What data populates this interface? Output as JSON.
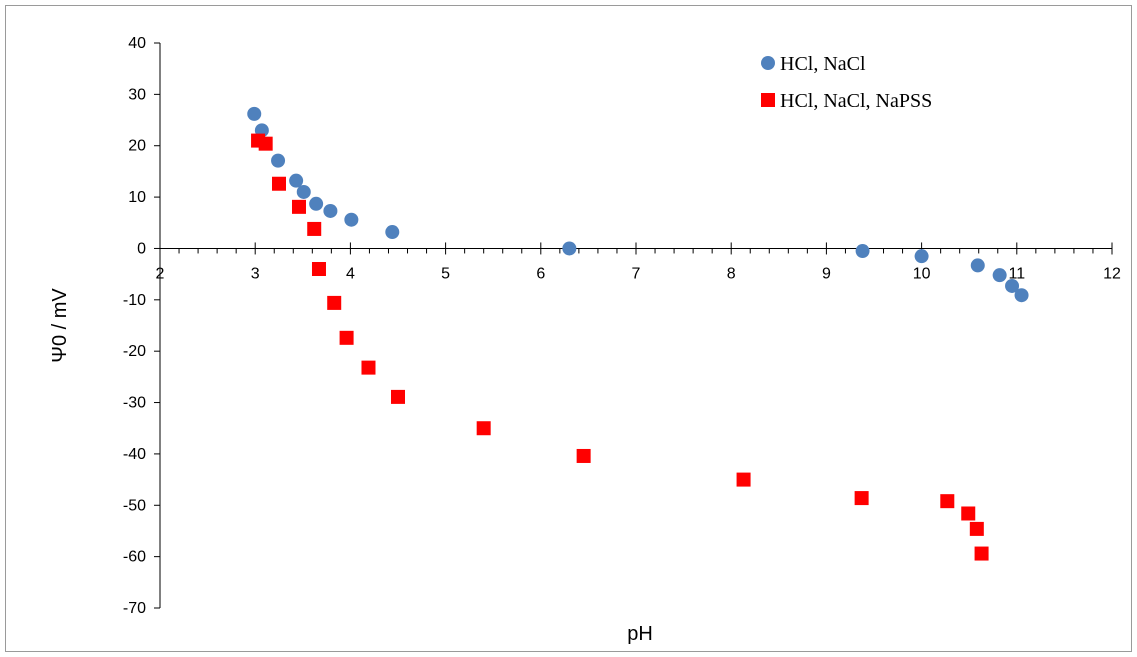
{
  "chart_data": {
    "type": "scatter",
    "title": "",
    "xlabel": "pH",
    "ylabel": "Ψ0 / mV",
    "xlim": [
      2,
      12
    ],
    "ylim": [
      -70,
      40
    ],
    "x_ticks": [
      "2",
      "3",
      "4",
      "5",
      "6",
      "7",
      "8",
      "9",
      "10",
      "11",
      "12"
    ],
    "y_ticks": [
      "40",
      "30",
      "20",
      "10",
      "0",
      "-10",
      "-20",
      "-30",
      "-40",
      "-50",
      "-60",
      "-70"
    ],
    "grid": false,
    "legend_position": "top-right",
    "series": [
      {
        "name": "HCl, NaCl",
        "marker": "circle",
        "color": "#4f81bd",
        "points": [
          [
            2.99,
            26.2
          ],
          [
            3.07,
            23.0
          ],
          [
            3.24,
            17.1
          ],
          [
            3.43,
            13.2
          ],
          [
            3.51,
            11.0
          ],
          [
            3.64,
            8.7
          ],
          [
            3.79,
            7.3
          ],
          [
            4.01,
            5.6
          ],
          [
            4.44,
            3.2
          ],
          [
            6.3,
            0.0
          ],
          [
            9.38,
            -0.5
          ],
          [
            10.0,
            -1.5
          ],
          [
            10.59,
            -3.3
          ],
          [
            10.82,
            -5.2
          ],
          [
            10.95,
            -7.3
          ],
          [
            11.05,
            -9.1
          ]
        ]
      },
      {
        "name": "HCl, NaCl, NaPSS",
        "marker": "square",
        "color": "#ff0000",
        "points": [
          [
            3.03,
            21.0
          ],
          [
            3.11,
            20.4
          ],
          [
            3.25,
            12.6
          ],
          [
            3.46,
            8.1
          ],
          [
            3.62,
            3.8
          ],
          [
            3.67,
            -4.0
          ],
          [
            3.83,
            -10.6
          ],
          [
            3.96,
            -17.4
          ],
          [
            4.19,
            -23.2
          ],
          [
            4.5,
            -28.9
          ],
          [
            5.4,
            -35.0
          ],
          [
            6.45,
            -40.4
          ],
          [
            8.13,
            -45.0
          ],
          [
            9.37,
            -48.6
          ],
          [
            10.27,
            -49.2
          ],
          [
            10.49,
            -51.6
          ],
          [
            10.58,
            -54.6
          ],
          [
            10.63,
            -59.4
          ]
        ]
      }
    ]
  }
}
